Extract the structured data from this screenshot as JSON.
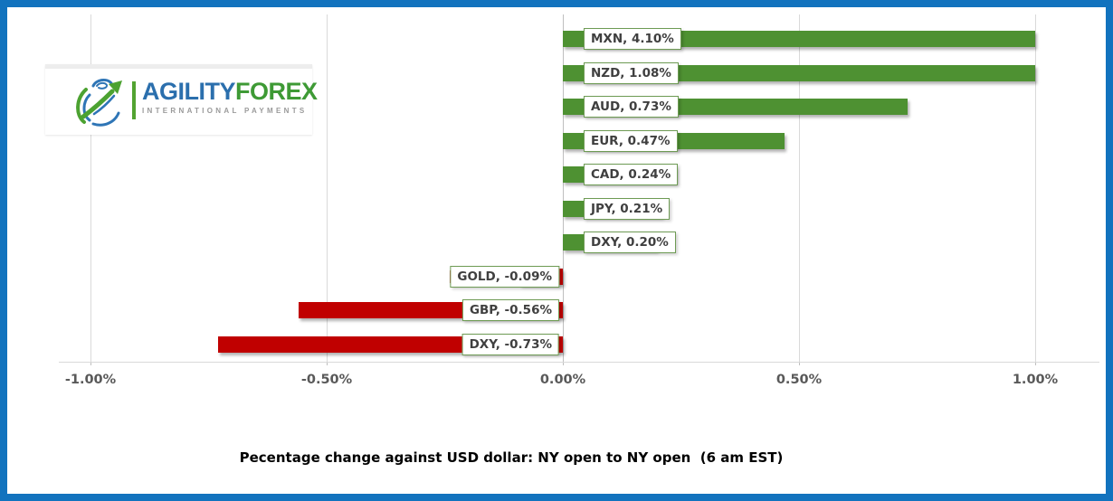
{
  "frame": {
    "border_color": "#1273BE",
    "background_color": "#FFFFFF"
  },
  "logo": {
    "brand_primary": "AGILITY",
    "brand_secondary": "FOREX",
    "tagline": "INTERNATIONAL PAYMENTS",
    "icon": "globe-swoosh-arrow",
    "colors": {
      "brand_primary": "#2B6FAD",
      "brand_secondary": "#3E9A35",
      "tagline": "#9A9A9A",
      "divider": "#52A331"
    }
  },
  "chart_data": {
    "type": "bar",
    "orientation": "horizontal",
    "title": "Pecentage change against USD dollar: NY open to NY open  (6 am EST)",
    "xlim": [
      -1.0,
      1.0
    ],
    "grid": true,
    "positive_color": "#4E9132",
    "negative_color": "#C00000",
    "label_box_border_color": "#6E9B54",
    "ticks": [
      {
        "value": -1.0,
        "label": "-1.00%"
      },
      {
        "value": -0.5,
        "label": "-0.50%"
      },
      {
        "value": 0.0,
        "label": "0.00%"
      },
      {
        "value": 0.5,
        "label": "0.50%"
      },
      {
        "value": 1.0,
        "label": "1.00%"
      }
    ],
    "rows": [
      {
        "name": "MXN",
        "value": 4.1,
        "label": "MXN, 4.10%",
        "legend_key": false
      },
      {
        "name": "NZD",
        "value": 1.08,
        "label": "NZD, 1.08%",
        "legend_key": false
      },
      {
        "name": "AUD",
        "value": 0.73,
        "label": "AUD, 0.73%",
        "legend_key": false
      },
      {
        "name": "EUR",
        "value": 0.47,
        "label": "EUR, 0.47%",
        "legend_key": false
      },
      {
        "name": "CAD",
        "value": 0.24,
        "label": "CAD, 0.24%",
        "legend_key": false
      },
      {
        "name": "JPY",
        "value": 0.21,
        "label": "JPY, 0.21%",
        "legend_key": false
      },
      {
        "name": "DXY",
        "value": 0.2,
        "label": "DXY, 0.20%",
        "legend_key": false
      },
      {
        "name": "GOLD",
        "value": -0.09,
        "label": "GOLD, -0.09%",
        "legend_key": true
      },
      {
        "name": "GBP",
        "value": -0.56,
        "label": "GBP, -0.56%",
        "legend_key": false
      },
      {
        "name": "DXY",
        "value": -0.73,
        "label": "DXY, -0.73%",
        "legend_key": false
      }
    ]
  }
}
